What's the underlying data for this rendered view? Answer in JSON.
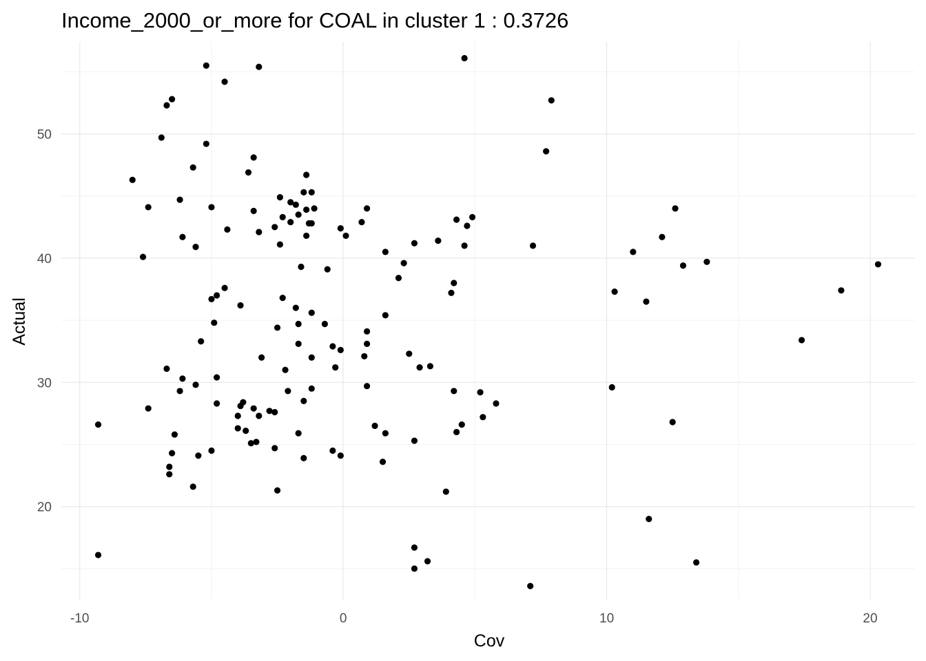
{
  "chart_data": {
    "type": "scatter",
    "title": "Income_2000_or_more for COAL in cluster 1 : 0.3726",
    "xlabel": "Cov",
    "ylabel": "Actual",
    "xlim": [
      -10.7,
      21.7
    ],
    "ylim": [
      12.5,
      57.4
    ],
    "x_major_ticks": [
      -10,
      0,
      10,
      20
    ],
    "x_minor_ticks": [
      -5,
      5,
      15
    ],
    "y_major_ticks": [
      20,
      30,
      40,
      50
    ],
    "y_minor_ticks": [
      15,
      25,
      35,
      45,
      55
    ],
    "x_tick_labels": [
      "-10",
      "0",
      "10",
      "20"
    ],
    "y_tick_labels": [
      "20",
      "30",
      "40",
      "50"
    ],
    "grid": true,
    "legend": "none",
    "point_color": "#000000",
    "points": [
      {
        "x": -5.2,
        "y": 55.5
      },
      {
        "x": -3.2,
        "y": 55.4
      },
      {
        "x": 4.6,
        "y": 56.1
      },
      {
        "x": -4.5,
        "y": 54.2
      },
      {
        "x": -6.5,
        "y": 52.8
      },
      {
        "x": -6.7,
        "y": 52.3
      },
      {
        "x": 7.9,
        "y": 52.7
      },
      {
        "x": -6.9,
        "y": 49.7
      },
      {
        "x": -5.2,
        "y": 49.2
      },
      {
        "x": 7.7,
        "y": 48.6
      },
      {
        "x": -3.4,
        "y": 48.1
      },
      {
        "x": -5.7,
        "y": 47.3
      },
      {
        "x": -3.6,
        "y": 46.9
      },
      {
        "x": -1.4,
        "y": 46.7
      },
      {
        "x": -8.0,
        "y": 46.3
      },
      {
        "x": -6.2,
        "y": 44.7
      },
      {
        "x": -2.4,
        "y": 44.9
      },
      {
        "x": -1.5,
        "y": 45.3
      },
      {
        "x": -1.2,
        "y": 45.3
      },
      {
        "x": -1.8,
        "y": 44.3
      },
      {
        "x": -2.0,
        "y": 44.5
      },
      {
        "x": -7.4,
        "y": 44.1
      },
      {
        "x": -5.0,
        "y": 44.1
      },
      {
        "x": -3.4,
        "y": 43.8
      },
      {
        "x": -1.4,
        "y": 43.9
      },
      {
        "x": -1.1,
        "y": 44.0
      },
      {
        "x": 0.9,
        "y": 44.0
      },
      {
        "x": -2.3,
        "y": 43.3
      },
      {
        "x": -1.7,
        "y": 43.5
      },
      {
        "x": -2.0,
        "y": 42.9
      },
      {
        "x": -1.3,
        "y": 42.8
      },
      {
        "x": -1.2,
        "y": 42.8
      },
      {
        "x": 0.7,
        "y": 42.9
      },
      {
        "x": 4.3,
        "y": 43.1
      },
      {
        "x": 4.9,
        "y": 43.3
      },
      {
        "x": 4.7,
        "y": 42.6
      },
      {
        "x": 12.6,
        "y": 44.0
      },
      {
        "x": -2.6,
        "y": 42.5
      },
      {
        "x": -4.4,
        "y": 42.3
      },
      {
        "x": -3.2,
        "y": 42.1
      },
      {
        "x": -0.1,
        "y": 42.4
      },
      {
        "x": -6.1,
        "y": 41.7
      },
      {
        "x": -1.4,
        "y": 41.8
      },
      {
        "x": 0.1,
        "y": 41.8
      },
      {
        "x": 12.1,
        "y": 41.7
      },
      {
        "x": -5.6,
        "y": 40.9
      },
      {
        "x": -2.4,
        "y": 41.1
      },
      {
        "x": 2.7,
        "y": 41.2
      },
      {
        "x": 3.6,
        "y": 41.4
      },
      {
        "x": 4.6,
        "y": 41.0
      },
      {
        "x": 7.2,
        "y": 41.0
      },
      {
        "x": -7.6,
        "y": 40.1
      },
      {
        "x": 1.6,
        "y": 40.5
      },
      {
        "x": 11.0,
        "y": 40.5
      },
      {
        "x": 2.3,
        "y": 39.6
      },
      {
        "x": -1.6,
        "y": 39.3
      },
      {
        "x": -0.6,
        "y": 39.1
      },
      {
        "x": 12.9,
        "y": 39.4
      },
      {
        "x": 13.8,
        "y": 39.7
      },
      {
        "x": 20.3,
        "y": 39.5
      },
      {
        "x": 2.1,
        "y": 38.4
      },
      {
        "x": 4.2,
        "y": 38.0
      },
      {
        "x": -4.5,
        "y": 37.6
      },
      {
        "x": 4.1,
        "y": 37.2
      },
      {
        "x": 10.3,
        "y": 37.3
      },
      {
        "x": 18.9,
        "y": 37.4
      },
      {
        "x": -4.8,
        "y": 37.0
      },
      {
        "x": -5.0,
        "y": 36.7
      },
      {
        "x": -2.3,
        "y": 36.8
      },
      {
        "x": -3.9,
        "y": 36.2
      },
      {
        "x": 11.5,
        "y": 36.5
      },
      {
        "x": -1.8,
        "y": 36.0
      },
      {
        "x": -1.2,
        "y": 35.6
      },
      {
        "x": 1.6,
        "y": 35.4
      },
      {
        "x": -4.9,
        "y": 34.8
      },
      {
        "x": -1.7,
        "y": 34.7
      },
      {
        "x": -0.7,
        "y": 34.7
      },
      {
        "x": -2.5,
        "y": 34.4
      },
      {
        "x": 0.9,
        "y": 34.1
      },
      {
        "x": -5.4,
        "y": 33.3
      },
      {
        "x": -1.7,
        "y": 33.1
      },
      {
        "x": 0.9,
        "y": 33.1
      },
      {
        "x": 17.4,
        "y": 33.4
      },
      {
        "x": -0.4,
        "y": 32.9
      },
      {
        "x": -0.1,
        "y": 32.6
      },
      {
        "x": 2.5,
        "y": 32.3
      },
      {
        "x": -3.1,
        "y": 32.0
      },
      {
        "x": -1.2,
        "y": 32.0
      },
      {
        "x": 0.8,
        "y": 32.1
      },
      {
        "x": -6.7,
        "y": 31.1
      },
      {
        "x": -2.2,
        "y": 31.0
      },
      {
        "x": -0.3,
        "y": 31.2
      },
      {
        "x": 2.9,
        "y": 31.2
      },
      {
        "x": 3.3,
        "y": 31.3
      },
      {
        "x": -6.1,
        "y": 30.3
      },
      {
        "x": -4.8,
        "y": 30.4
      },
      {
        "x": -5.6,
        "y": 29.8
      },
      {
        "x": -6.2,
        "y": 29.3
      },
      {
        "x": -2.1,
        "y": 29.3
      },
      {
        "x": -1.2,
        "y": 29.5
      },
      {
        "x": 0.9,
        "y": 29.7
      },
      {
        "x": 4.2,
        "y": 29.3
      },
      {
        "x": 5.2,
        "y": 29.2
      },
      {
        "x": 10.2,
        "y": 29.6
      },
      {
        "x": -4.8,
        "y": 28.3
      },
      {
        "x": -3.8,
        "y": 28.4
      },
      {
        "x": -1.5,
        "y": 28.5
      },
      {
        "x": 5.8,
        "y": 28.3
      },
      {
        "x": -3.9,
        "y": 28.1
      },
      {
        "x": -7.4,
        "y": 27.9
      },
      {
        "x": -3.4,
        "y": 27.9
      },
      {
        "x": -2.8,
        "y": 27.7
      },
      {
        "x": -2.6,
        "y": 27.6
      },
      {
        "x": -4.0,
        "y": 27.3
      },
      {
        "x": -3.2,
        "y": 27.3
      },
      {
        "x": 5.3,
        "y": 27.2
      },
      {
        "x": -9.3,
        "y": 26.6
      },
      {
        "x": 1.2,
        "y": 26.5
      },
      {
        "x": 4.5,
        "y": 26.6
      },
      {
        "x": 12.5,
        "y": 26.8
      },
      {
        "x": -4.0,
        "y": 26.3
      },
      {
        "x": -3.7,
        "y": 26.1
      },
      {
        "x": -6.4,
        "y": 25.8
      },
      {
        "x": -1.7,
        "y": 25.9
      },
      {
        "x": 1.6,
        "y": 25.9
      },
      {
        "x": 4.3,
        "y": 26.0
      },
      {
        "x": -3.5,
        "y": 25.1
      },
      {
        "x": -3.3,
        "y": 25.2
      },
      {
        "x": 2.7,
        "y": 25.3
      },
      {
        "x": -2.6,
        "y": 24.7
      },
      {
        "x": -5.0,
        "y": 24.5
      },
      {
        "x": -0.4,
        "y": 24.5
      },
      {
        "x": -6.5,
        "y": 24.3
      },
      {
        "x": -5.5,
        "y": 24.1
      },
      {
        "x": -1.5,
        "y": 23.9
      },
      {
        "x": -0.1,
        "y": 24.1
      },
      {
        "x": 1.5,
        "y": 23.6
      },
      {
        "x": -6.6,
        "y": 23.2
      },
      {
        "x": -6.6,
        "y": 22.6
      },
      {
        "x": -5.7,
        "y": 21.6
      },
      {
        "x": -2.5,
        "y": 21.3
      },
      {
        "x": 3.9,
        "y": 21.2
      },
      {
        "x": 11.6,
        "y": 19.0
      },
      {
        "x": -9.3,
        "y": 16.1
      },
      {
        "x": 2.7,
        "y": 16.7
      },
      {
        "x": 3.2,
        "y": 15.6
      },
      {
        "x": 2.7,
        "y": 15.0
      },
      {
        "x": 13.4,
        "y": 15.5
      },
      {
        "x": 7.1,
        "y": 13.6
      }
    ]
  }
}
